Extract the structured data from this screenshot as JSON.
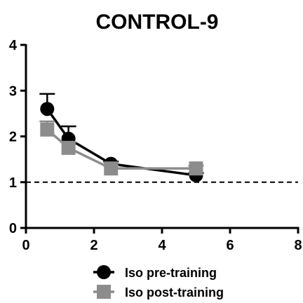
{
  "chart_data": {
    "type": "line",
    "title": "CONTROL-9",
    "xlabel": "",
    "ylabel": "",
    "xlim": [
      0,
      8
    ],
    "ylim": [
      0,
      4
    ],
    "x_ticks": [
      0,
      2,
      4,
      6,
      8
    ],
    "y_ticks": [
      0,
      1,
      2,
      3,
      4
    ],
    "grid": false,
    "legend_position": "bottom",
    "reference_line": {
      "y": 1,
      "style": "dashed",
      "color": "#000000"
    },
    "series": [
      {
        "name": "Iso pre-training",
        "marker": "circle",
        "color": "#000000",
        "x": [
          0.625,
          1.25,
          2.5,
          5.0
        ],
        "y": [
          2.6,
          1.95,
          1.4,
          1.15
        ],
        "error": [
          0.33,
          0.27,
          0.05,
          0.05
        ]
      },
      {
        "name": "Iso post-training",
        "marker": "square",
        "color": "#8c8c8c",
        "x": [
          0.625,
          1.25,
          2.5,
          5.0
        ],
        "y": [
          2.15,
          1.75,
          1.3,
          1.3
        ],
        "error": [
          0.18,
          0.12,
          0.06,
          0.06
        ]
      }
    ]
  }
}
